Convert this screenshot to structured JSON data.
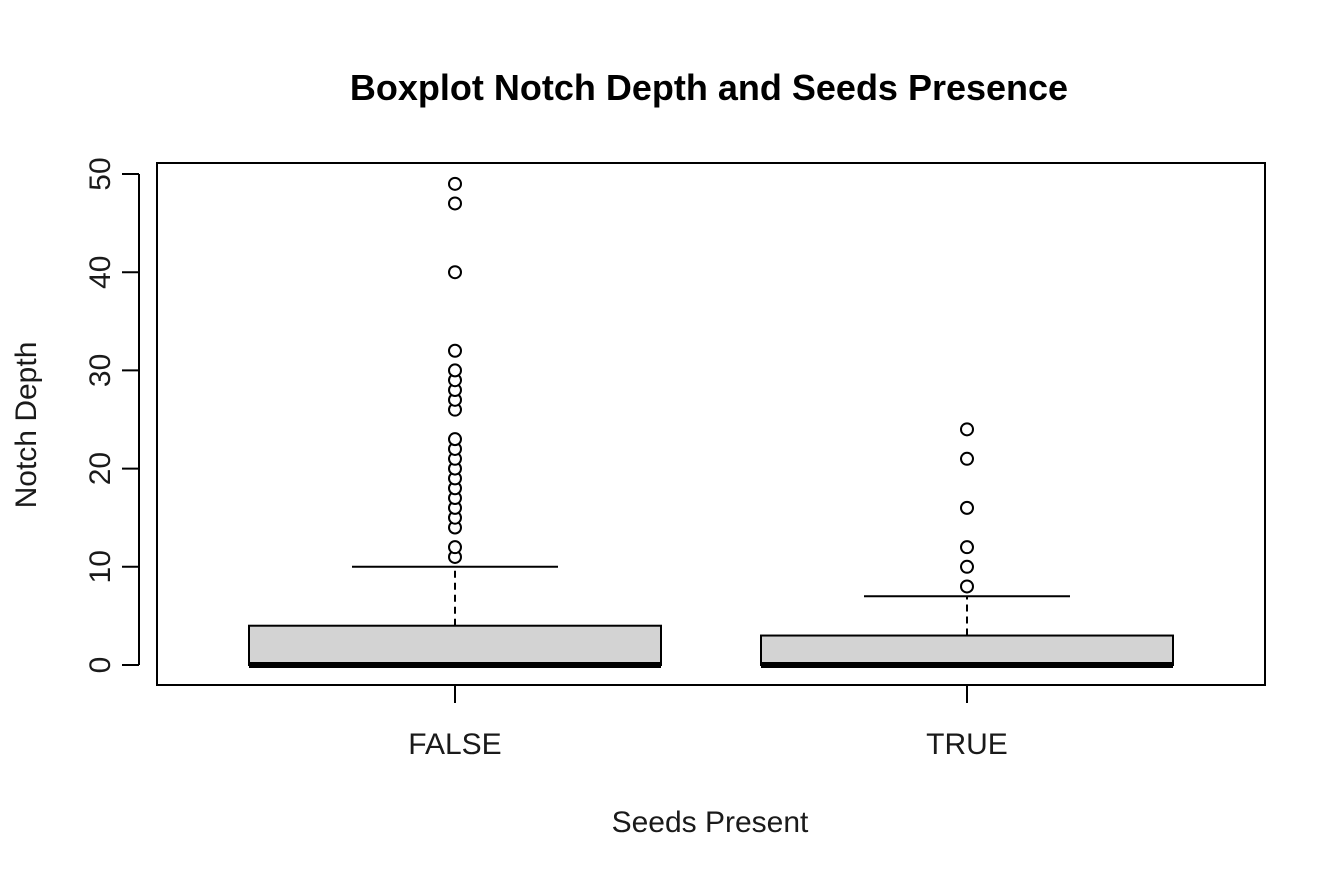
{
  "chart_data": {
    "type": "boxplot",
    "title": "Boxplot Notch Depth and Seeds Presence",
    "xlabel": "Seeds Present",
    "ylabel": "Notch Depth",
    "categories": [
      "FALSE",
      "TRUE"
    ],
    "y_ticks": [
      "0",
      "10",
      "20",
      "30",
      "40",
      "50"
    ],
    "y_tick_values": [
      0,
      10,
      20,
      30,
      40,
      50
    ],
    "ylim": [
      -2,
      51
    ],
    "box_fill": "#d3d3d3",
    "boxes": [
      {
        "category": "FALSE",
        "min": 0,
        "q1": 0,
        "median": 0,
        "q3": 4,
        "whisker_high": 10,
        "outliers": [
          11,
          12,
          14,
          15,
          16,
          17,
          18,
          19,
          20,
          21,
          22,
          23,
          26,
          27,
          28,
          29,
          30,
          32,
          40,
          47,
          49
        ]
      },
      {
        "category": "TRUE",
        "min": 0,
        "q1": 0,
        "median": 0,
        "q3": 3,
        "whisker_high": 7,
        "outliers": [
          8,
          10,
          12,
          16,
          21,
          24
        ]
      }
    ]
  }
}
